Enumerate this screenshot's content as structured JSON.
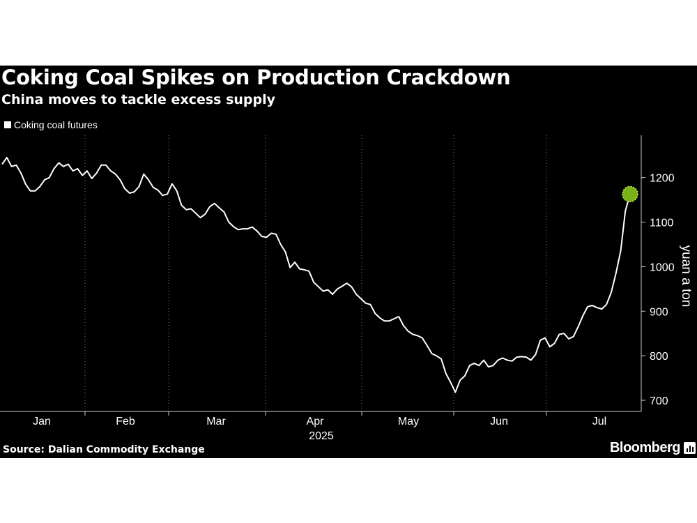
{
  "title": "Coking Coal Spikes on Production Crackdown",
  "subtitle": "China moves to tackle excess supply",
  "source": "Source: Dalian Commodity Exchange",
  "brand": "Bloomberg",
  "colors": {
    "background": "#000000",
    "line": "#ffffff",
    "highlight": "#7ab317",
    "grid": "#777777"
  },
  "chart_data": {
    "type": "line",
    "title": "Coking Coal Spikes on Production Crackdown",
    "subtitle": "China moves to tackle excess supply",
    "ylabel": "yuan a ton",
    "xlabel": "",
    "ylim": [
      675,
      1295
    ],
    "yticks": [
      700,
      800,
      900,
      1000,
      1100,
      1200
    ],
    "months": [
      "Jan",
      "Feb",
      "Mar",
      "Apr",
      "May",
      "Jun",
      "Jul"
    ],
    "year_label": "2025",
    "legend": "Coking coal futures",
    "legend_position": "top-left",
    "grid": "vertical dotted",
    "series": [
      {
        "name": "Coking coal futures",
        "highlight_last": true,
        "values": [
          1230,
          1245,
          1225,
          1228,
          1210,
          1185,
          1170,
          1170,
          1180,
          1195,
          1200,
          1220,
          1233,
          1225,
          1230,
          1215,
          1220,
          1205,
          1215,
          1198,
          1210,
          1228,
          1228,
          1215,
          1208,
          1195,
          1175,
          1165,
          1168,
          1180,
          1208,
          1195,
          1178,
          1172,
          1160,
          1163,
          1186,
          1170,
          1138,
          1128,
          1130,
          1120,
          1110,
          1118,
          1135,
          1142,
          1132,
          1123,
          1100,
          1090,
          1083,
          1085,
          1085,
          1089,
          1080,
          1068,
          1066,
          1075,
          1073,
          1050,
          1033,
          998,
          1010,
          995,
          993,
          990,
          965,
          955,
          945,
          948,
          938,
          950,
          956,
          963,
          955,
          938,
          928,
          918,
          915,
          895,
          885,
          878,
          878,
          883,
          888,
          868,
          855,
          848,
          845,
          840,
          823,
          805,
          800,
          793,
          760,
          740,
          718,
          745,
          755,
          778,
          783,
          778,
          790,
          775,
          778,
          790,
          795,
          790,
          788,
          797,
          798,
          797,
          790,
          803,
          835,
          840,
          820,
          828,
          848,
          850,
          838,
          843,
          865,
          890,
          910,
          913,
          908,
          905,
          915,
          942,
          985,
          1035,
          1125,
          1163
        ]
      }
    ]
  }
}
